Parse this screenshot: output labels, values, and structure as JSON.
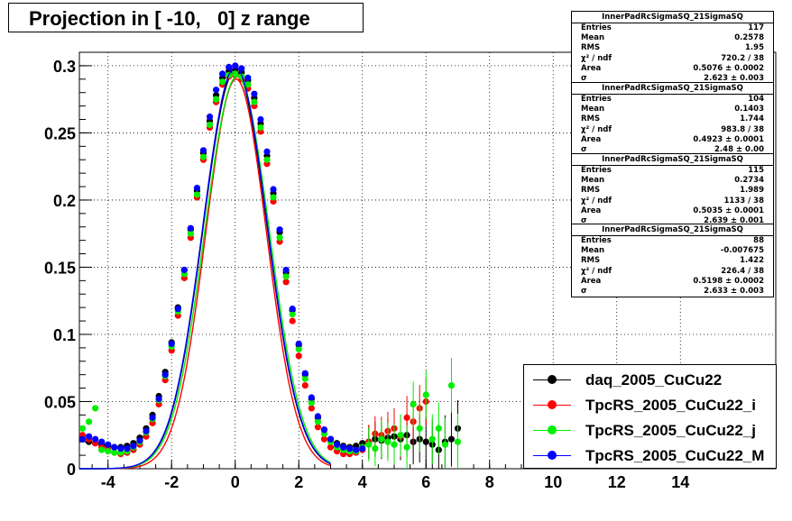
{
  "header": {
    "title": "Projection in [ -10,   0] z range"
  },
  "stats": [
    {
      "title": "InnerPadRcSigmaSQ_21SigmaSQ",
      "rows": [
        {
          "k": "Entries",
          "v": "117"
        },
        {
          "k": "Mean",
          "v": "0.2578"
        },
        {
          "k": "RMS",
          "v": "1.95"
        },
        {
          "k": "χ² / ndf",
          "v": "720.2 / 38"
        },
        {
          "k": "Area",
          "v": "0.5076 ± 0.0002"
        },
        {
          "k": "σ",
          "v": "2.623 ± 0.003"
        }
      ]
    },
    {
      "title": "InnerPadRcSigmaSQ_21SigmaSQ",
      "rows": [
        {
          "k": "Entries",
          "v": "104"
        },
        {
          "k": "Mean",
          "v": "0.1403"
        },
        {
          "k": "RMS",
          "v": "1.744"
        },
        {
          "k": "χ² / ndf",
          "v": "983.8 / 38"
        },
        {
          "k": "Area",
          "v": "0.4923 ± 0.0001"
        },
        {
          "k": "σ",
          "v": "2.48 ± 0.00"
        }
      ]
    },
    {
      "title": "InnerPadRcSigmaSQ_21SigmaSQ",
      "rows": [
        {
          "k": "Entries",
          "v": "115"
        },
        {
          "k": "Mean",
          "v": "0.2734"
        },
        {
          "k": "RMS",
          "v": "1.989"
        },
        {
          "k": "χ² / ndf",
          "v": "1133 / 38"
        },
        {
          "k": "Area",
          "v": "0.5035 ± 0.0001"
        },
        {
          "k": "σ",
          "v": "2.639 ± 0.001"
        }
      ]
    },
    {
      "title": "InnerPadRcSigmaSQ_21SigmaSQ",
      "rows": [
        {
          "k": "Entries",
          "v": "88"
        },
        {
          "k": "Mean",
          "v": "-0.007675"
        },
        {
          "k": "RMS",
          "v": "1.422"
        },
        {
          "k": "χ² / ndf",
          "v": "226.4 / 38"
        },
        {
          "k": "Area",
          "v": "0.5198 ± 0.0002"
        },
        {
          "k": "σ",
          "v": "2.633 ± 0.003"
        }
      ]
    }
  ],
  "chart_data": {
    "type": "scatter",
    "xlim": [
      -4.9,
      17.0
    ],
    "ylim": [
      0,
      0.31
    ],
    "x_ticks": [
      -4,
      -2,
      0,
      2,
      4,
      6,
      8,
      10,
      12,
      14
    ],
    "y_ticks": [
      0,
      0.05,
      0.1,
      0.15,
      0.2,
      0.25,
      0.3
    ],
    "grid": true,
    "legend_position": "bottom-right",
    "series": [
      {
        "name": "daq_2005_CuCu22",
        "color": "#000000",
        "sigma": 2.623,
        "amp": 0.296,
        "shift": 0.0,
        "x": [
          -4.8,
          -4.6,
          -4.4,
          -4.2,
          -4.0,
          -3.8,
          -3.6,
          -3.4,
          -3.2,
          -3.0,
          -2.8,
          -2.6,
          -2.4,
          -2.2,
          -2.0,
          -1.8,
          -1.6,
          -1.4,
          -1.2,
          -1.0,
          -0.8,
          -0.6,
          -0.4,
          -0.2,
          0.0,
          0.2,
          0.4,
          0.6,
          0.8,
          1.0,
          1.2,
          1.4,
          1.6,
          1.8,
          2.0,
          2.2,
          2.4,
          2.6,
          2.8,
          3.0,
          3.2,
          3.4,
          3.6,
          3.8,
          4.0,
          4.2,
          4.4,
          4.6,
          4.8,
          5.0,
          5.2,
          5.4,
          5.6,
          5.8,
          6.0,
          6.2,
          6.4,
          6.6,
          6.8,
          7.0
        ],
        "y": [
          0.022,
          0.02,
          0.019,
          0.018,
          0.017,
          0.016,
          0.016,
          0.017,
          0.019,
          0.023,
          0.03,
          0.04,
          0.054,
          0.072,
          0.094,
          0.12,
          0.148,
          0.178,
          0.207,
          0.235,
          0.259,
          0.278,
          0.291,
          0.296,
          0.297,
          0.295,
          0.289,
          0.276,
          0.257,
          0.233,
          0.205,
          0.176,
          0.146,
          0.118,
          0.092,
          0.07,
          0.052,
          0.038,
          0.029,
          0.022,
          0.019,
          0.017,
          0.016,
          0.017,
          0.019,
          0.02,
          0.022,
          0.021,
          0.023,
          0.024,
          0.022,
          0.025,
          0.02,
          0.022,
          0.02,
          0.018,
          0.014,
          0.02,
          0.022,
          0.03
        ]
      },
      {
        "name": "TpcRS_2005_CuCu22_i",
        "color": "#ff0000",
        "sigma": 2.48,
        "amp": 0.29,
        "shift": 0.03,
        "x": [
          -4.8,
          -4.6,
          -4.4,
          -4.2,
          -4.0,
          -3.8,
          -3.6,
          -3.4,
          -3.2,
          -3.0,
          -2.8,
          -2.6,
          -2.4,
          -2.2,
          -2.0,
          -1.8,
          -1.6,
          -1.4,
          -1.2,
          -1.0,
          -0.8,
          -0.6,
          -0.4,
          -0.2,
          0.0,
          0.2,
          0.4,
          0.6,
          0.8,
          1.0,
          1.2,
          1.4,
          1.6,
          1.8,
          2.0,
          2.2,
          2.4,
          2.6,
          2.8,
          3.0,
          3.2,
          3.4,
          3.6,
          3.8,
          4.0,
          4.2,
          4.4,
          4.6,
          4.8,
          5.0,
          5.2,
          5.4,
          5.6,
          5.8,
          6.0
        ],
        "y": [
          0.025,
          0.022,
          0.019,
          0.016,
          0.014,
          0.012,
          0.011,
          0.012,
          0.014,
          0.018,
          0.024,
          0.034,
          0.048,
          0.066,
          0.088,
          0.114,
          0.142,
          0.172,
          0.202,
          0.23,
          0.254,
          0.273,
          0.286,
          0.292,
          0.293,
          0.29,
          0.283,
          0.27,
          0.251,
          0.227,
          0.199,
          0.169,
          0.139,
          0.11,
          0.084,
          0.062,
          0.045,
          0.031,
          0.022,
          0.016,
          0.013,
          0.011,
          0.011,
          0.012,
          0.014,
          0.02,
          0.026,
          0.025,
          0.028,
          0.03,
          0.024,
          0.038,
          0.035,
          0.045,
          0.05
        ]
      },
      {
        "name": "TpcRS_2005_CuCu22_j",
        "color": "#00ee00",
        "sigma": 2.639,
        "amp": 0.292,
        "shift": 0.06,
        "x": [
          -4.8,
          -4.6,
          -4.4,
          -4.2,
          -4.0,
          -3.8,
          -3.6,
          -3.4,
          -3.2,
          -3.0,
          -2.8,
          -2.6,
          -2.4,
          -2.2,
          -2.0,
          -1.8,
          -1.6,
          -1.4,
          -1.2,
          -1.0,
          -0.8,
          -0.6,
          -0.4,
          -0.2,
          0.0,
          0.2,
          0.4,
          0.6,
          0.8,
          1.0,
          1.2,
          1.4,
          1.6,
          1.8,
          2.0,
          2.2,
          2.4,
          2.6,
          2.8,
          3.0,
          3.2,
          3.4,
          3.6,
          3.8,
          4.0,
          4.2,
          4.4,
          4.6,
          4.8,
          5.0,
          5.2,
          5.4,
          5.6,
          5.8,
          6.0,
          6.2,
          6.4,
          6.6,
          6.8,
          7.0
        ],
        "y": [
          0.03,
          0.035,
          0.045,
          0.014,
          0.013,
          0.012,
          0.012,
          0.013,
          0.016,
          0.02,
          0.027,
          0.037,
          0.051,
          0.069,
          0.091,
          0.117,
          0.145,
          0.175,
          0.204,
          0.232,
          0.256,
          0.275,
          0.288,
          0.293,
          0.294,
          0.292,
          0.286,
          0.273,
          0.254,
          0.23,
          0.202,
          0.172,
          0.143,
          0.115,
          0.089,
          0.067,
          0.049,
          0.035,
          0.026,
          0.02,
          0.016,
          0.014,
          0.013,
          0.013,
          0.016,
          0.018,
          0.015,
          0.022,
          0.02,
          0.018,
          0.025,
          0.016,
          0.048,
          0.03,
          0.055,
          0.022,
          0.03,
          0.018,
          0.062,
          0.02
        ]
      },
      {
        "name": "TpcRS_2005_CuCu22_M",
        "color": "#0000ff",
        "sigma": 2.633,
        "amp": 0.299,
        "shift": 0.0,
        "x": [
          -4.8,
          -4.6,
          -4.4,
          -4.2,
          -4.0,
          -3.8,
          -3.6,
          -3.4,
          -3.2,
          -3.0,
          -2.8,
          -2.6,
          -2.4,
          -2.2,
          -2.0,
          -1.8,
          -1.6,
          -1.4,
          -1.2,
          -1.0,
          -0.8,
          -0.6,
          -0.4,
          -0.2,
          0.0,
          0.2,
          0.4,
          0.6,
          0.8,
          1.0,
          1.2,
          1.4,
          1.6,
          1.8,
          2.0,
          2.2,
          2.4,
          2.6,
          2.8,
          3.0,
          3.2,
          3.4,
          3.6,
          3.8,
          4.0
        ],
        "y": [
          0.022,
          0.024,
          0.022,
          0.02,
          0.018,
          0.016,
          0.015,
          0.015,
          0.017,
          0.021,
          0.028,
          0.038,
          0.052,
          0.07,
          0.093,
          0.119,
          0.148,
          0.179,
          0.209,
          0.237,
          0.262,
          0.282,
          0.294,
          0.299,
          0.3,
          0.298,
          0.291,
          0.279,
          0.26,
          0.236,
          0.208,
          0.178,
          0.148,
          0.119,
          0.093,
          0.071,
          0.053,
          0.039,
          0.029,
          0.022,
          0.018,
          0.016,
          0.015,
          0.014,
          0.015
        ]
      }
    ]
  }
}
